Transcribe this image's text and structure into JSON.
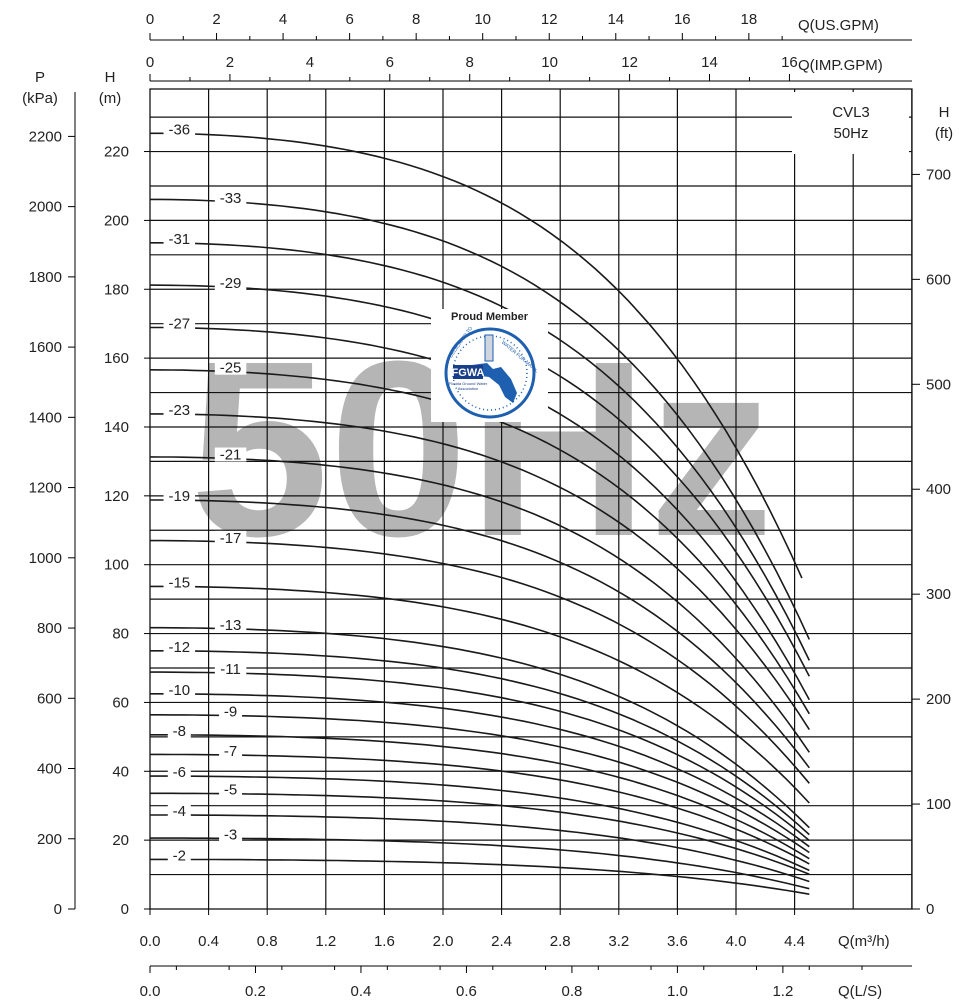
{
  "chart_data": {
    "type": "line",
    "model_label": "CVL3",
    "frequency_label": "50Hz",
    "watermark": "50Hz",
    "x_axis": {
      "label": "Q(m³/h)",
      "range": [
        0,
        5.2
      ],
      "ticks": [
        "0.0",
        "0.4",
        "0.8",
        "1.2",
        "1.6",
        "2.0",
        "2.4",
        "2.8",
        "3.2",
        "3.6",
        "4.0",
        "4.4"
      ],
      "tick_values": [
        0,
        0.4,
        0.8,
        1.2,
        1.6,
        2.0,
        2.4,
        2.8,
        3.2,
        3.6,
        4.0,
        4.4
      ]
    },
    "x_axis_ls": {
      "label": "Q(L/S)",
      "ticks": [
        "0.0",
        "0.2",
        "0.4",
        "0.6",
        "0.8",
        "1.0",
        "1.2"
      ],
      "tick_values": [
        0,
        0.2,
        0.4,
        0.6,
        0.8,
        1.0,
        1.2
      ]
    },
    "x_axis_usgpm": {
      "label": "Q(US.GPM)",
      "ticks": [
        "0",
        "2",
        "4",
        "6",
        "8",
        "10",
        "12",
        "14",
        "16",
        "18"
      ],
      "tick_values": [
        0,
        2,
        4,
        6,
        8,
        10,
        12,
        14,
        16,
        18
      ]
    },
    "x_axis_impgpm": {
      "label": "Q(IMP.GPM)",
      "ticks": [
        "0",
        "2",
        "4",
        "6",
        "8",
        "10",
        "12",
        "14",
        "16"
      ],
      "tick_values": [
        0,
        2,
        4,
        6,
        8,
        10,
        12,
        14,
        16
      ]
    },
    "y_axis_m": {
      "label_top": "H",
      "label_bottom": "(m)",
      "range": [
        0,
        240
      ],
      "ticks": [
        "0",
        "20",
        "40",
        "60",
        "80",
        "100",
        "120",
        "140",
        "160",
        "180",
        "200",
        "220"
      ],
      "tick_values": [
        0,
        20,
        40,
        60,
        80,
        100,
        120,
        140,
        160,
        180,
        200,
        220
      ]
    },
    "y_axis_kpa": {
      "label_top": "P",
      "label_bottom": "(kPa)",
      "ticks": [
        "0",
        "200",
        "400",
        "600",
        "800",
        "1000",
        "1200",
        "1400",
        "1600",
        "1800",
        "2000",
        "2200"
      ],
      "tick_values": [
        0,
        200,
        400,
        600,
        800,
        1000,
        1200,
        1400,
        1600,
        1800,
        2000,
        2200
      ]
    },
    "y_axis_ft": {
      "label_top": "H",
      "label_bottom": "(ft)",
      "ticks": [
        "0",
        "100",
        "200",
        "300",
        "400",
        "500",
        "600",
        "700"
      ],
      "tick_values": [
        0,
        100,
        200,
        300,
        400,
        500,
        600,
        700
      ]
    },
    "grid": true,
    "series": [
      {
        "name": "-2",
        "shutoff": 14.4,
        "end_flow": 4.5,
        "end_head": 4.3
      },
      {
        "name": "-3",
        "shutoff": 20.6,
        "end_flow": 4.5,
        "end_head": 5.9
      },
      {
        "name": "-4",
        "shutoff": 27.3,
        "end_flow": 4.5,
        "end_head": 8.0
      },
      {
        "name": "-5",
        "shutoff": 33.6,
        "end_flow": 4.5,
        "end_head": 10.1
      },
      {
        "name": "-6",
        "shutoff": 38.6,
        "end_flow": 4.5,
        "end_head": 11.2
      },
      {
        "name": "-7",
        "shutoff": 44.9,
        "end_flow": 4.5,
        "end_head": 13.1
      },
      {
        "name": "-8",
        "shutoff": 50.6,
        "end_flow": 4.5,
        "end_head": 14.6
      },
      {
        "name": "-9",
        "shutoff": 56.4,
        "end_flow": 4.5,
        "end_head": 16.4
      },
      {
        "name": "-10",
        "shutoff": 62.5,
        "end_flow": 4.5,
        "end_head": 18.1
      },
      {
        "name": "-11",
        "shutoff": 68.8,
        "end_flow": 4.5,
        "end_head": 19.9
      },
      {
        "name": "-12",
        "shutoff": 75.0,
        "end_flow": 4.5,
        "end_head": 21.6
      },
      {
        "name": "-13",
        "shutoff": 81.7,
        "end_flow": 4.5,
        "end_head": 23.6
      },
      {
        "name": "-15",
        "shutoff": 93.7,
        "end_flow": 4.5,
        "end_head": 30.8
      },
      {
        "name": "-17",
        "shutoff": 107.0,
        "end_flow": 4.5,
        "end_head": 36.5
      },
      {
        "name": "-19",
        "shutoff": 118.8,
        "end_flow": 4.5,
        "end_head": 41.0
      },
      {
        "name": "-21",
        "shutoff": 131.3,
        "end_flow": 4.5,
        "end_head": 45.5
      },
      {
        "name": "-23",
        "shutoff": 143.8,
        "end_flow": 4.5,
        "end_head": 52.1
      },
      {
        "name": "-25",
        "shutoff": 156.6,
        "end_flow": 4.5,
        "end_head": 56.7
      },
      {
        "name": "-27",
        "shutoff": 168.9,
        "end_flow": 4.5,
        "end_head": 60.8
      },
      {
        "name": "-29",
        "shutoff": 181.2,
        "end_flow": 4.5,
        "end_head": 67.6
      },
      {
        "name": "-31",
        "shutoff": 193.5,
        "end_flow": 4.5,
        "end_head": 72.2
      },
      {
        "name": "-33",
        "shutoff": 206.1,
        "end_flow": 4.5,
        "end_head": 78.3
      },
      {
        "name": "-36",
        "shutoff": 225.3,
        "end_flow": 4.45,
        "end_head": 96.1
      }
    ]
  },
  "badge": {
    "title": "Proud Member",
    "logo_text": "FGWA",
    "ring_text_left": "DEDICATED TO PROVIDE",
    "ring_text_right": "WATER FOR MANKIND",
    "org_name_1": "Florida Ground Water",
    "org_name_2": "Association",
    "colors": {
      "blue": "#1f5fb0",
      "dark_blue": "#1a3f8a",
      "ring": "#e8e8e8"
    }
  }
}
